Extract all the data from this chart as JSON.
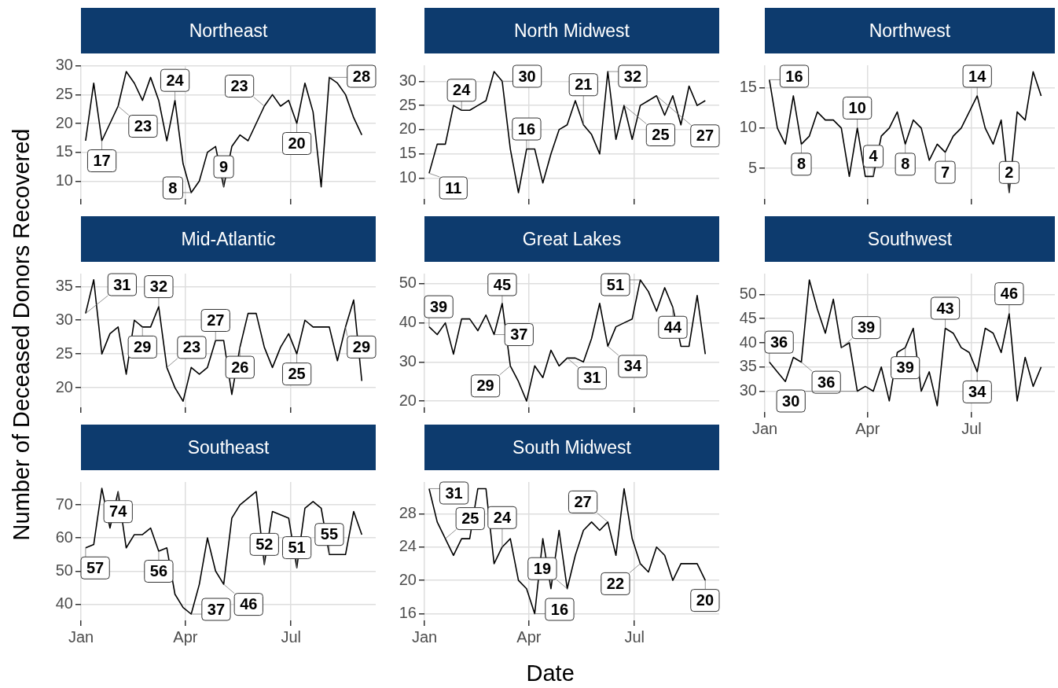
{
  "chart_data": [
    {
      "type": "line",
      "title": "Northeast",
      "x": [
        "--01-05",
        "--01-12",
        "--01-19",
        "--01-26",
        "--02-02",
        "--02-09",
        "--02-16",
        "--02-23",
        "--03-02",
        "--03-09",
        "--03-16",
        "--03-23",
        "--03-30",
        "--04-06",
        "--04-13",
        "--04-20",
        "--04-27",
        "--05-04",
        "--05-11",
        "--05-18",
        "--05-25",
        "--06-01",
        "--06-08",
        "--06-15",
        "--06-22",
        "--06-29",
        "--07-06",
        "--07-13",
        "--07-20",
        "--07-27",
        "--08-03",
        "--08-10",
        "--08-17",
        "--08-24",
        "--08-31"
      ],
      "values": [
        17,
        27,
        17,
        20,
        23,
        29,
        27,
        24,
        28,
        24,
        17,
        24,
        13,
        8,
        10,
        15,
        16,
        9,
        16,
        18,
        17,
        20,
        23,
        25,
        23,
        24,
        20,
        27,
        22,
        9,
        28,
        27,
        25,
        21,
        18
      ],
      "color": "#000000",
      "xlim": [
        "--01-01",
        "--09-12"
      ],
      "xticks": [
        {
          "value": "--01-01",
          "label": "Jan"
        },
        {
          "value": "--04-01",
          "label": "Apr"
        },
        {
          "value": "--07-01",
          "label": "Jul"
        }
      ],
      "ylim": [
        6.9,
        30.1
      ],
      "yticks": [
        10,
        15,
        20,
        25,
        30
      ],
      "grid": true,
      "tick_labels": "y",
      "annotations": [
        {
          "text": "23",
          "x": "--02-02",
          "y": 23
        },
        {
          "text": "17",
          "x": "--01-19",
          "y": 17
        },
        {
          "text": "24",
          "x": "--03-23",
          "y": 24
        },
        {
          "text": "8",
          "x": "--04-06",
          "y": 8
        },
        {
          "text": "9",
          "x": "--05-04",
          "y": 9
        },
        {
          "text": "23",
          "x": "--06-08",
          "y": 23
        },
        {
          "text": "20",
          "x": "--07-06",
          "y": 20
        },
        {
          "text": "28",
          "x": "--08-03",
          "y": 28
        }
      ]
    },
    {
      "type": "line",
      "title": "North Midwest",
      "x": [
        "--01-05",
        "--01-12",
        "--01-19",
        "--01-26",
        "--02-02",
        "--02-09",
        "--02-16",
        "--02-23",
        "--03-02",
        "--03-09",
        "--03-16",
        "--03-23",
        "--03-30",
        "--04-06",
        "--04-13",
        "--04-20",
        "--04-27",
        "--05-04",
        "--05-11",
        "--05-18",
        "--05-25",
        "--06-01",
        "--06-08",
        "--06-15",
        "--06-22",
        "--06-29",
        "--07-06",
        "--07-13",
        "--07-20",
        "--07-27",
        "--08-03",
        "--08-10",
        "--08-17",
        "--08-24",
        "--08-31"
      ],
      "values": [
        11,
        17,
        17,
        25,
        24,
        24,
        25,
        26,
        32,
        30,
        16,
        7,
        16,
        16,
        9,
        15,
        20,
        21,
        26,
        21,
        19,
        15,
        32,
        18,
        25,
        18,
        25,
        26,
        27,
        23,
        27,
        21,
        29,
        25,
        26
      ],
      "color": "#000000",
      "xlim": [
        "--01-01",
        "--09-12"
      ],
      "xticks": [
        {
          "value": "--01-01",
          "label": "Jan"
        },
        {
          "value": "--04-01",
          "label": "Apr"
        },
        {
          "value": "--07-01",
          "label": "Jul"
        }
      ],
      "ylim": [
        5.7,
        33.3
      ],
      "yticks": [
        10,
        15,
        20,
        25,
        30
      ],
      "grid": true,
      "tick_labels": "y",
      "annotations": [
        {
          "text": "11",
          "x": "--01-05",
          "y": 11
        },
        {
          "text": "24",
          "x": "--02-02",
          "y": 24
        },
        {
          "text": "30",
          "x": "--03-09",
          "y": 30
        },
        {
          "text": "16",
          "x": "--03-30",
          "y": 16
        },
        {
          "text": "21",
          "x": "--05-18",
          "y": 21
        },
        {
          "text": "32",
          "x": "--06-08",
          "y": 32
        },
        {
          "text": "25",
          "x": "--06-22",
          "y": 25
        },
        {
          "text": "27",
          "x": "--07-20",
          "y": 27
        }
      ]
    },
    {
      "type": "line",
      "title": "Northwest",
      "x": [
        "--01-05",
        "--01-12",
        "--01-19",
        "--01-26",
        "--02-02",
        "--02-09",
        "--02-16",
        "--02-23",
        "--03-02",
        "--03-09",
        "--03-16",
        "--03-23",
        "--03-30",
        "--04-06",
        "--04-13",
        "--04-20",
        "--04-27",
        "--05-04",
        "--05-11",
        "--05-18",
        "--05-25",
        "--06-01",
        "--06-08",
        "--06-15",
        "--06-22",
        "--06-29",
        "--07-06",
        "--07-13",
        "--07-20",
        "--07-27",
        "--08-03",
        "--08-10",
        "--08-17",
        "--08-24",
        "--08-31"
      ],
      "values": [
        16,
        10,
        8,
        14,
        8,
        9,
        12,
        11,
        11,
        10,
        4,
        10,
        4,
        4,
        9,
        10,
        12,
        8,
        11,
        10,
        6,
        8,
        7,
        9,
        10,
        12,
        14,
        10,
        8,
        11,
        2,
        12,
        11,
        17,
        14
      ],
      "color": "#000000",
      "xlim": [
        "--01-01",
        "--09-12"
      ],
      "xticks": [
        {
          "value": "--01-01",
          "label": "Jan"
        },
        {
          "value": "--04-01",
          "label": "Apr"
        },
        {
          "value": "--07-01",
          "label": "Jul"
        }
      ],
      "ylim": [
        1.2,
        17.8
      ],
      "yticks": [
        5,
        10,
        15
      ],
      "grid": true,
      "tick_labels": "y",
      "annotations": [
        {
          "text": "16",
          "x": "--01-05",
          "y": 16
        },
        {
          "text": "8",
          "x": "--02-02",
          "y": 8
        },
        {
          "text": "10",
          "x": "--03-23",
          "y": 10
        },
        {
          "text": "4",
          "x": "--04-06",
          "y": 4
        },
        {
          "text": "8",
          "x": "--05-04",
          "y": 8
        },
        {
          "text": "7",
          "x": "--06-08",
          "y": 7
        },
        {
          "text": "14",
          "x": "--07-06",
          "y": 14
        },
        {
          "text": "2",
          "x": "--08-03",
          "y": 2
        }
      ]
    },
    {
      "type": "line",
      "title": "Mid-Atlantic",
      "ylabel": "Number of Deceased Donors Recovered",
      "x": [
        "--01-05",
        "--01-12",
        "--01-19",
        "--01-26",
        "--02-02",
        "--02-09",
        "--02-16",
        "--02-23",
        "--03-02",
        "--03-09",
        "--03-16",
        "--03-23",
        "--03-30",
        "--04-06",
        "--04-13",
        "--04-20",
        "--04-27",
        "--05-04",
        "--05-11",
        "--05-18",
        "--05-25",
        "--06-01",
        "--06-08",
        "--06-15",
        "--06-22",
        "--06-29",
        "--07-06",
        "--07-13",
        "--07-20",
        "--07-27",
        "--08-03",
        "--08-10",
        "--08-17",
        "--08-24",
        "--08-31"
      ],
      "values": [
        31,
        36,
        25,
        28,
        29,
        22,
        30,
        29,
        29,
        32,
        23,
        20,
        18,
        23,
        22,
        23,
        27,
        27,
        19,
        26,
        31,
        31,
        26,
        23,
        26,
        28,
        25,
        30,
        29,
        29,
        29,
        24,
        29,
        33,
        21
      ],
      "color": "#000000",
      "xlim": [
        "--01-01",
        "--09-12"
      ],
      "xticks": [
        {
          "value": "--01-01",
          "label": "Jan"
        },
        {
          "value": "--04-01",
          "label": "Apr"
        },
        {
          "value": "--07-01",
          "label": "Jul"
        }
      ],
      "ylim": [
        17.1,
        36.9
      ],
      "yticks": [
        20,
        25,
        30,
        35
      ],
      "grid": true,
      "tick_labels": "y",
      "annotations": [
        {
          "text": "31",
          "x": "--01-05",
          "y": 31
        },
        {
          "text": "29",
          "x": "--02-23",
          "y": 29
        },
        {
          "text": "32",
          "x": "--03-09",
          "y": 32
        },
        {
          "text": "23",
          "x": "--03-16",
          "y": 23
        },
        {
          "text": "27",
          "x": "--04-27",
          "y": 27
        },
        {
          "text": "26",
          "x": "--05-18",
          "y": 26
        },
        {
          "text": "25",
          "x": "--07-06",
          "y": 25
        },
        {
          "text": "29",
          "x": "--08-17",
          "y": 29
        }
      ]
    },
    {
      "type": "line",
      "title": "Great Lakes",
      "x": [
        "--01-05",
        "--01-12",
        "--01-19",
        "--01-26",
        "--02-02",
        "--02-09",
        "--02-16",
        "--02-23",
        "--03-02",
        "--03-09",
        "--03-16",
        "--03-23",
        "--03-30",
        "--04-06",
        "--04-13",
        "--04-20",
        "--04-27",
        "--05-04",
        "--05-11",
        "--05-18",
        "--05-25",
        "--06-01",
        "--06-08",
        "--06-15",
        "--06-22",
        "--06-29",
        "--07-06",
        "--07-13",
        "--07-20",
        "--07-27",
        "--08-03",
        "--08-10",
        "--08-17",
        "--08-24",
        "--08-31"
      ],
      "values": [
        39,
        37,
        40,
        32,
        41,
        41,
        38,
        42,
        37,
        45,
        29,
        25,
        20,
        29,
        26,
        33,
        29,
        31,
        31,
        30,
        36,
        45,
        34,
        39,
        40,
        41,
        51,
        48,
        43,
        49,
        44,
        34,
        34,
        47,
        32
      ],
      "color": "#000000",
      "xlim": [
        "--01-01",
        "--09-12"
      ],
      "xticks": [
        {
          "value": "--01-01",
          "label": "Jan"
        },
        {
          "value": "--04-01",
          "label": "Apr"
        },
        {
          "value": "--07-01",
          "label": "Jul"
        }
      ],
      "ylim": [
        18.4,
        52.6
      ],
      "yticks": [
        20,
        30,
        40,
        50
      ],
      "grid": true,
      "tick_labels": "y",
      "annotations": [
        {
          "text": "39",
          "x": "--01-05",
          "y": 39
        },
        {
          "text": "37",
          "x": "--03-02",
          "y": 37
        },
        {
          "text": "45",
          "x": "--03-09",
          "y": 45
        },
        {
          "text": "29",
          "x": "--03-16",
          "y": 29
        },
        {
          "text": "31",
          "x": "--05-04",
          "y": 31
        },
        {
          "text": "34",
          "x": "--06-08",
          "y": 34
        },
        {
          "text": "51",
          "x": "--07-06",
          "y": 51
        },
        {
          "text": "44",
          "x": "--08-03",
          "y": 44
        }
      ]
    },
    {
      "type": "line",
      "title": "Southwest",
      "x": [
        "--01-05",
        "--01-12",
        "--01-19",
        "--01-26",
        "--02-02",
        "--02-09",
        "--02-16",
        "--02-23",
        "--03-02",
        "--03-09",
        "--03-16",
        "--03-23",
        "--03-30",
        "--04-06",
        "--04-13",
        "--04-20",
        "--04-27",
        "--05-04",
        "--05-11",
        "--05-18",
        "--05-25",
        "--06-01",
        "--06-08",
        "--06-15",
        "--06-22",
        "--06-29",
        "--07-06",
        "--07-13",
        "--07-20",
        "--07-27",
        "--08-03",
        "--08-10",
        "--08-17",
        "--08-24",
        "--08-31"
      ],
      "values": [
        36,
        34,
        32,
        37,
        36,
        53,
        47,
        42,
        49,
        39,
        40,
        30,
        31,
        30,
        35,
        28,
        38,
        39,
        43,
        30,
        34,
        27,
        43,
        42,
        39,
        38,
        34,
        43,
        42,
        38,
        46,
        28,
        37,
        31,
        35
      ],
      "color": "#000000",
      "xlim": [
        "--01-01",
        "--09-12"
      ],
      "xticks": [
        {
          "value": "--01-01",
          "label": "Jan"
        },
        {
          "value": "--04-01",
          "label": "Apr"
        },
        {
          "value": "--07-01",
          "label": "Jul"
        }
      ],
      "ylim": [
        25.7,
        54.3
      ],
      "yticks": [
        30,
        35,
        40,
        45,
        50
      ],
      "grid": true,
      "annotations": [
        {
          "text": "36",
          "x": "--01-05",
          "y": 36
        },
        {
          "text": "36",
          "x": "--02-02",
          "y": 36
        },
        {
          "text": "39",
          "x": "--03-09",
          "y": 39
        },
        {
          "text": "30",
          "x": "--03-23",
          "y": 30
        },
        {
          "text": "39",
          "x": "--05-04",
          "y": 39
        },
        {
          "text": "43",
          "x": "--06-08",
          "y": 43
        },
        {
          "text": "34",
          "x": "--07-06",
          "y": 34
        },
        {
          "text": "46",
          "x": "--08-03",
          "y": 46
        }
      ]
    },
    {
      "type": "line",
      "title": "Southeast",
      "x": [
        "--01-05",
        "--01-12",
        "--01-19",
        "--01-26",
        "--02-02",
        "--02-09",
        "--02-16",
        "--02-23",
        "--03-02",
        "--03-09",
        "--03-16",
        "--03-23",
        "--03-30",
        "--04-06",
        "--04-13",
        "--04-20",
        "--04-27",
        "--05-04",
        "--05-11",
        "--05-18",
        "--05-25",
        "--06-01",
        "--06-08",
        "--06-15",
        "--06-22",
        "--06-29",
        "--07-06",
        "--07-13",
        "--07-20",
        "--07-27",
        "--08-03",
        "--08-10",
        "--08-17",
        "--08-24",
        "--08-31"
      ],
      "values": [
        57,
        58,
        75,
        63,
        74,
        57,
        61,
        61,
        63,
        56,
        57,
        43,
        39,
        37,
        46,
        60,
        50,
        46,
        66,
        70,
        72,
        74,
        52,
        68,
        67,
        66,
        51,
        69,
        71,
        69,
        55,
        55,
        55,
        68,
        61
      ],
      "color": "#000000",
      "xlim": [
        "--01-01",
        "--09-12"
      ],
      "xticks": [
        {
          "value": "--01-01",
          "label": "Jan"
        },
        {
          "value": "--04-01",
          "label": "Apr"
        },
        {
          "value": "--07-01",
          "label": "Jul"
        }
      ],
      "ylim": [
        35.1,
        76.9
      ],
      "yticks": [
        40,
        50,
        60,
        70
      ],
      "grid": true,
      "annotations": [
        {
          "text": "57",
          "x": "--01-05",
          "y": 57
        },
        {
          "text": "74",
          "x": "--02-02",
          "y": 74
        },
        {
          "text": "56",
          "x": "--03-09",
          "y": 56
        },
        {
          "text": "37",
          "x": "--04-06",
          "y": 37
        },
        {
          "text": "46",
          "x": "--05-04",
          "y": 46
        },
        {
          "text": "52",
          "x": "--06-08",
          "y": 52
        },
        {
          "text": "51",
          "x": "--07-06",
          "y": 51
        },
        {
          "text": "55",
          "x": "--08-03",
          "y": 55
        }
      ]
    },
    {
      "type": "line",
      "title": "South Midwest",
      "xlabel": "Date",
      "x": [
        "--01-05",
        "--01-12",
        "--01-19",
        "--01-26",
        "--02-02",
        "--02-09",
        "--02-16",
        "--02-23",
        "--03-02",
        "--03-09",
        "--03-16",
        "--03-23",
        "--03-30",
        "--04-06",
        "--04-13",
        "--04-20",
        "--04-27",
        "--05-04",
        "--05-11",
        "--05-18",
        "--05-25",
        "--06-01",
        "--06-08",
        "--06-15",
        "--06-22",
        "--06-29",
        "--07-06",
        "--07-13",
        "--07-20",
        "--07-27",
        "--08-03",
        "--08-10",
        "--08-17",
        "--08-24",
        "--08-31"
      ],
      "values": [
        31,
        27,
        25,
        23,
        25,
        25,
        31,
        31,
        22,
        24,
        25,
        20,
        19,
        16,
        25,
        19,
        26,
        19,
        23,
        26,
        27,
        26,
        27,
        23,
        31,
        25,
        22,
        21,
        24,
        23,
        20,
        22,
        22,
        22,
        20
      ],
      "color": "#000000",
      "xlim": [
        "--01-01",
        "--09-12"
      ],
      "xticks": [
        {
          "value": "--01-01",
          "label": "Jan"
        },
        {
          "value": "--04-01",
          "label": "Apr"
        },
        {
          "value": "--07-01",
          "label": "Jul"
        }
      ],
      "ylim": [
        15.2,
        31.8
      ],
      "yticks": [
        16,
        20,
        24,
        28
      ],
      "grid": true,
      "annotations": [
        {
          "text": "31",
          "x": "--01-05",
          "y": 31
        },
        {
          "text": "25",
          "x": "--01-19",
          "y": 25
        },
        {
          "text": "24",
          "x": "--03-09",
          "y": 24
        },
        {
          "text": "16",
          "x": "--04-06",
          "y": 16
        },
        {
          "text": "19",
          "x": "--05-04",
          "y": 19
        },
        {
          "text": "27",
          "x": "--06-08",
          "y": 27
        },
        {
          "text": "22",
          "x": "--07-06",
          "y": 22
        },
        {
          "text": "20",
          "x": "--08-31",
          "y": 20
        }
      ]
    }
  ]
}
